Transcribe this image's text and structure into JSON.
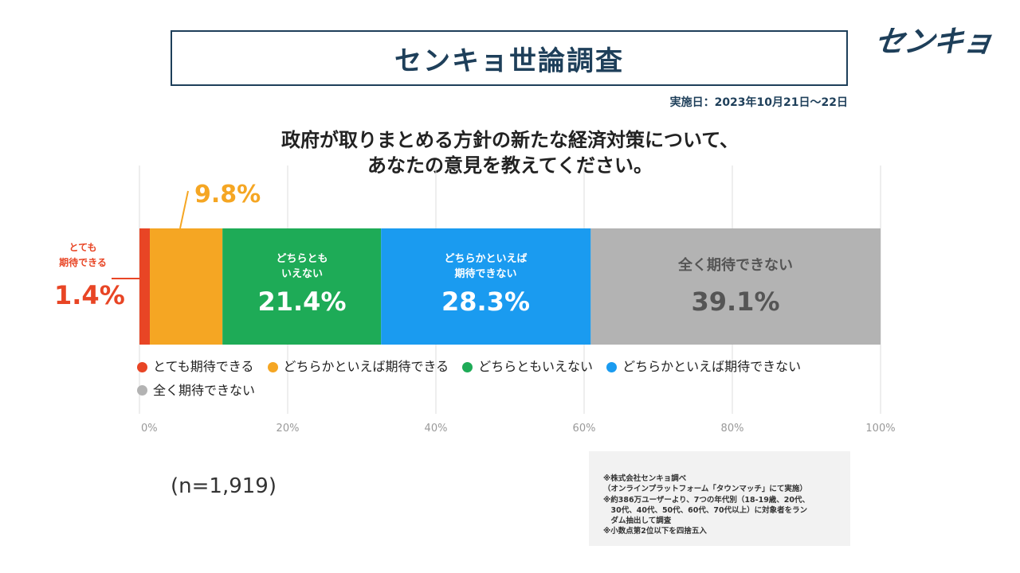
{
  "header": {
    "title": "センキョ世論調査",
    "logo_text": "センキョ",
    "date": "実施日：2023年10月21日～22日"
  },
  "question": {
    "line1": "政府が取りまとめる方針の新たな経済対策について、",
    "line2": "あなたの意見を教えてください。"
  },
  "chart_data": {
    "type": "bar",
    "orientation": "horizontal-stacked",
    "categories": [
      "とても期待できる",
      "どちらかといえば期待できる",
      "どちらともいえない",
      "どちらかといえば期待できない",
      "全く期待できない"
    ],
    "values": [
      1.4,
      9.8,
      21.4,
      28.3,
      39.1
    ],
    "value_labels": [
      "1.4%",
      "9.8%",
      "21.4%",
      "28.3%",
      "39.1%"
    ],
    "colors": [
      "#e84525",
      "#f5a623",
      "#1eab57",
      "#1a9bf0",
      "#b3b3b3"
    ],
    "xlim": [
      0,
      100
    ],
    "ticks": [
      "0%",
      "20%",
      "40%",
      "60%",
      "80%",
      "100%"
    ],
    "grid": true,
    "legend": "bottom"
  },
  "segment_labels": {
    "very_expect_line1": "とても",
    "very_expect_line2": "期待できる",
    "neither_line1": "どちらとも",
    "neither_line2": "いえない",
    "somewhat_not_line1": "どちらかといえば",
    "somewhat_not_line2": "期待できない",
    "not_at_all": "全く期待できない"
  },
  "sample_size": "(n=1,919)",
  "notes": [
    "※株式会社センキョ調べ",
    "（オンラインプラットフォーム「タウンマッチ」にて実施）",
    "※約386万ユーザーより、7つの年代別（18-19歳、20代、",
    "　30代、40代、50代、60代、70代以上）に対象者をラン",
    "　ダム抽出して調査",
    "※小数点第2位以下を四捨五入"
  ]
}
